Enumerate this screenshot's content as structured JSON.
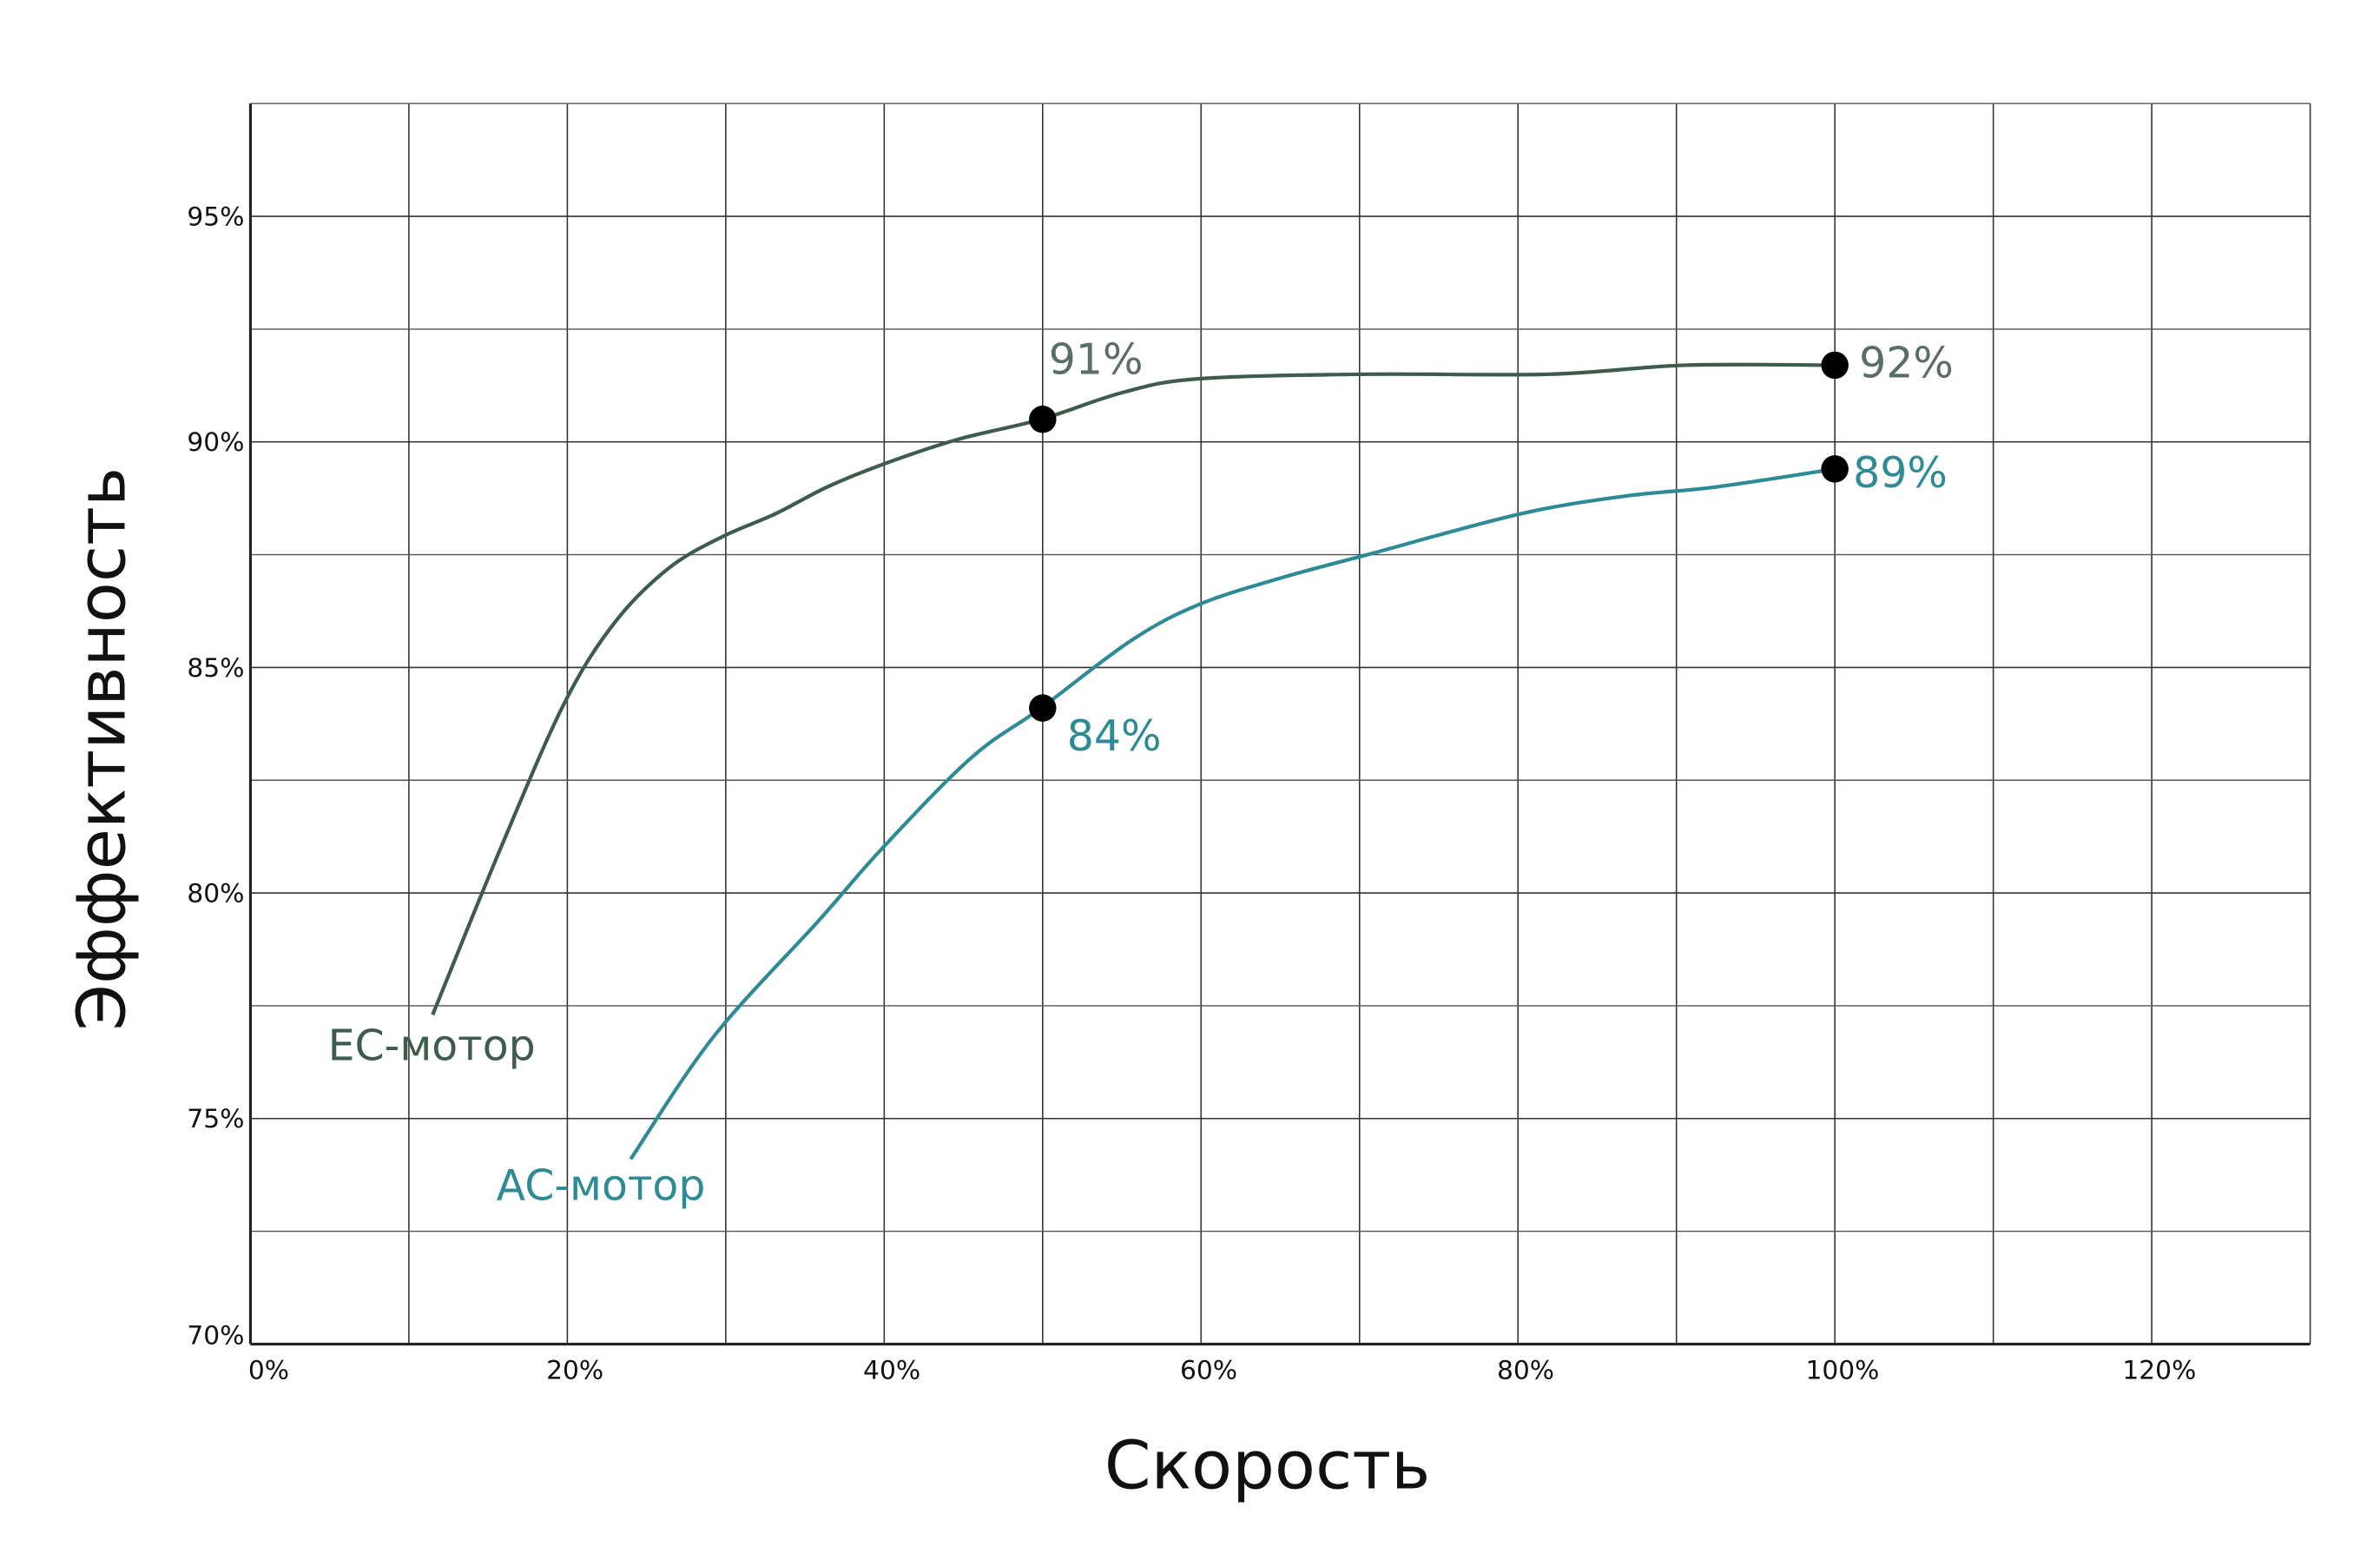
{
  "chart_data": {
    "type": "line",
    "title": "",
    "xlabel": "Скорость",
    "ylabel": "Эффективность",
    "xlim": [
      0,
      130
    ],
    "ylim": [
      70,
      97.5
    ],
    "x_ticks": [
      0,
      20,
      40,
      60,
      80,
      100,
      120
    ],
    "x_tick_labels": [
      "0%",
      "20%",
      "40%",
      "60%",
      "80%",
      "100%",
      "120%"
    ],
    "y_ticks": [
      70,
      75,
      80,
      85,
      90,
      95
    ],
    "y_tick_labels": [
      "70%",
      "75%",
      "80%",
      "85%",
      "90%",
      "95%"
    ],
    "grid": true,
    "series": [
      {
        "name": "EC-мотор",
        "color": "#3d5c4e",
        "x": [
          11.5,
          15.8,
          19.8,
          23.0,
          26.4,
          29.8,
          33.1,
          36.4,
          39.9,
          44.6,
          49.9,
          55.1,
          59.9,
          70.5,
          82.0,
          90.6,
          100
        ],
        "y": [
          77.3,
          81.0,
          84.2,
          86.0,
          87.2,
          87.9,
          88.4,
          89.0,
          89.5,
          90.05,
          90.5,
          91.1,
          91.4,
          91.5,
          91.5,
          91.7,
          91.7
        ],
        "markers": [
          {
            "x": 50,
            "y": 90.5,
            "label": "91%"
          },
          {
            "x": 100,
            "y": 91.7,
            "label": "92%"
          }
        ]
      },
      {
        "name": "AC-мотор",
        "color": "#2e8b96",
        "x": [
          24.0,
          29.2,
          35.9,
          39.9,
          45.5,
          49.9,
          55.6,
          59.9,
          65.2,
          70.5,
          80.1,
          86.8,
          92.5,
          100
        ],
        "y": [
          74.1,
          76.8,
          79.4,
          81.0,
          83.0,
          84.1,
          85.6,
          86.4,
          87.0,
          87.5,
          88.4,
          88.8,
          89.0,
          89.4
        ],
        "markers": [
          {
            "x": 50,
            "y": 84.1,
            "label": "84%"
          },
          {
            "x": 100,
            "y": 89.4,
            "label": "89%"
          }
        ]
      }
    ]
  }
}
